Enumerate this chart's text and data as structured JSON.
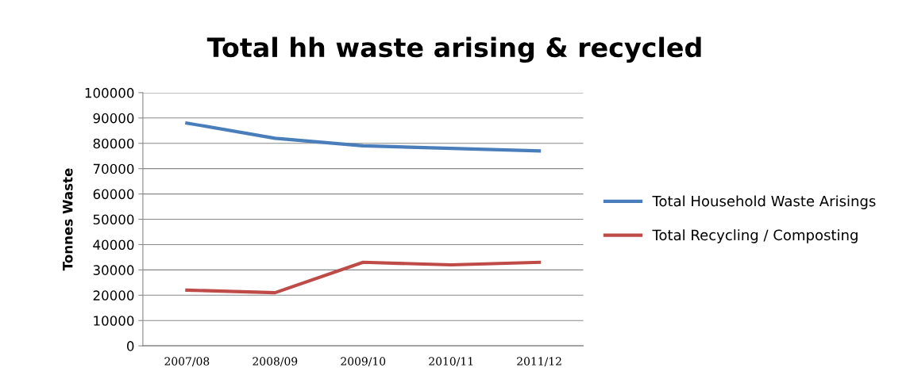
{
  "chart_data": {
    "type": "line",
    "title": "Total hh waste arising & recycled",
    "ylabel": "Tonnes Waste",
    "categories": [
      "2007/08",
      "2008/09",
      "2009/10",
      "2010/11",
      "2011/12"
    ],
    "series": [
      {
        "name": "Total Household Waste Arisings",
        "color": "#4a7ebb",
        "values": [
          88000,
          82000,
          79000,
          78000,
          77000
        ]
      },
      {
        "name": "Total Recycling / Composting",
        "color": "#be4b48",
        "values": [
          22000,
          21000,
          33000,
          32000,
          33000
        ]
      }
    ],
    "ylim": [
      0,
      100000
    ],
    "yticks": [
      0,
      10000,
      20000,
      30000,
      40000,
      50000,
      60000,
      70000,
      80000,
      90000,
      100000
    ],
    "grid": "y",
    "legend": "right",
    "marker": "none",
    "line_style": "solid"
  }
}
